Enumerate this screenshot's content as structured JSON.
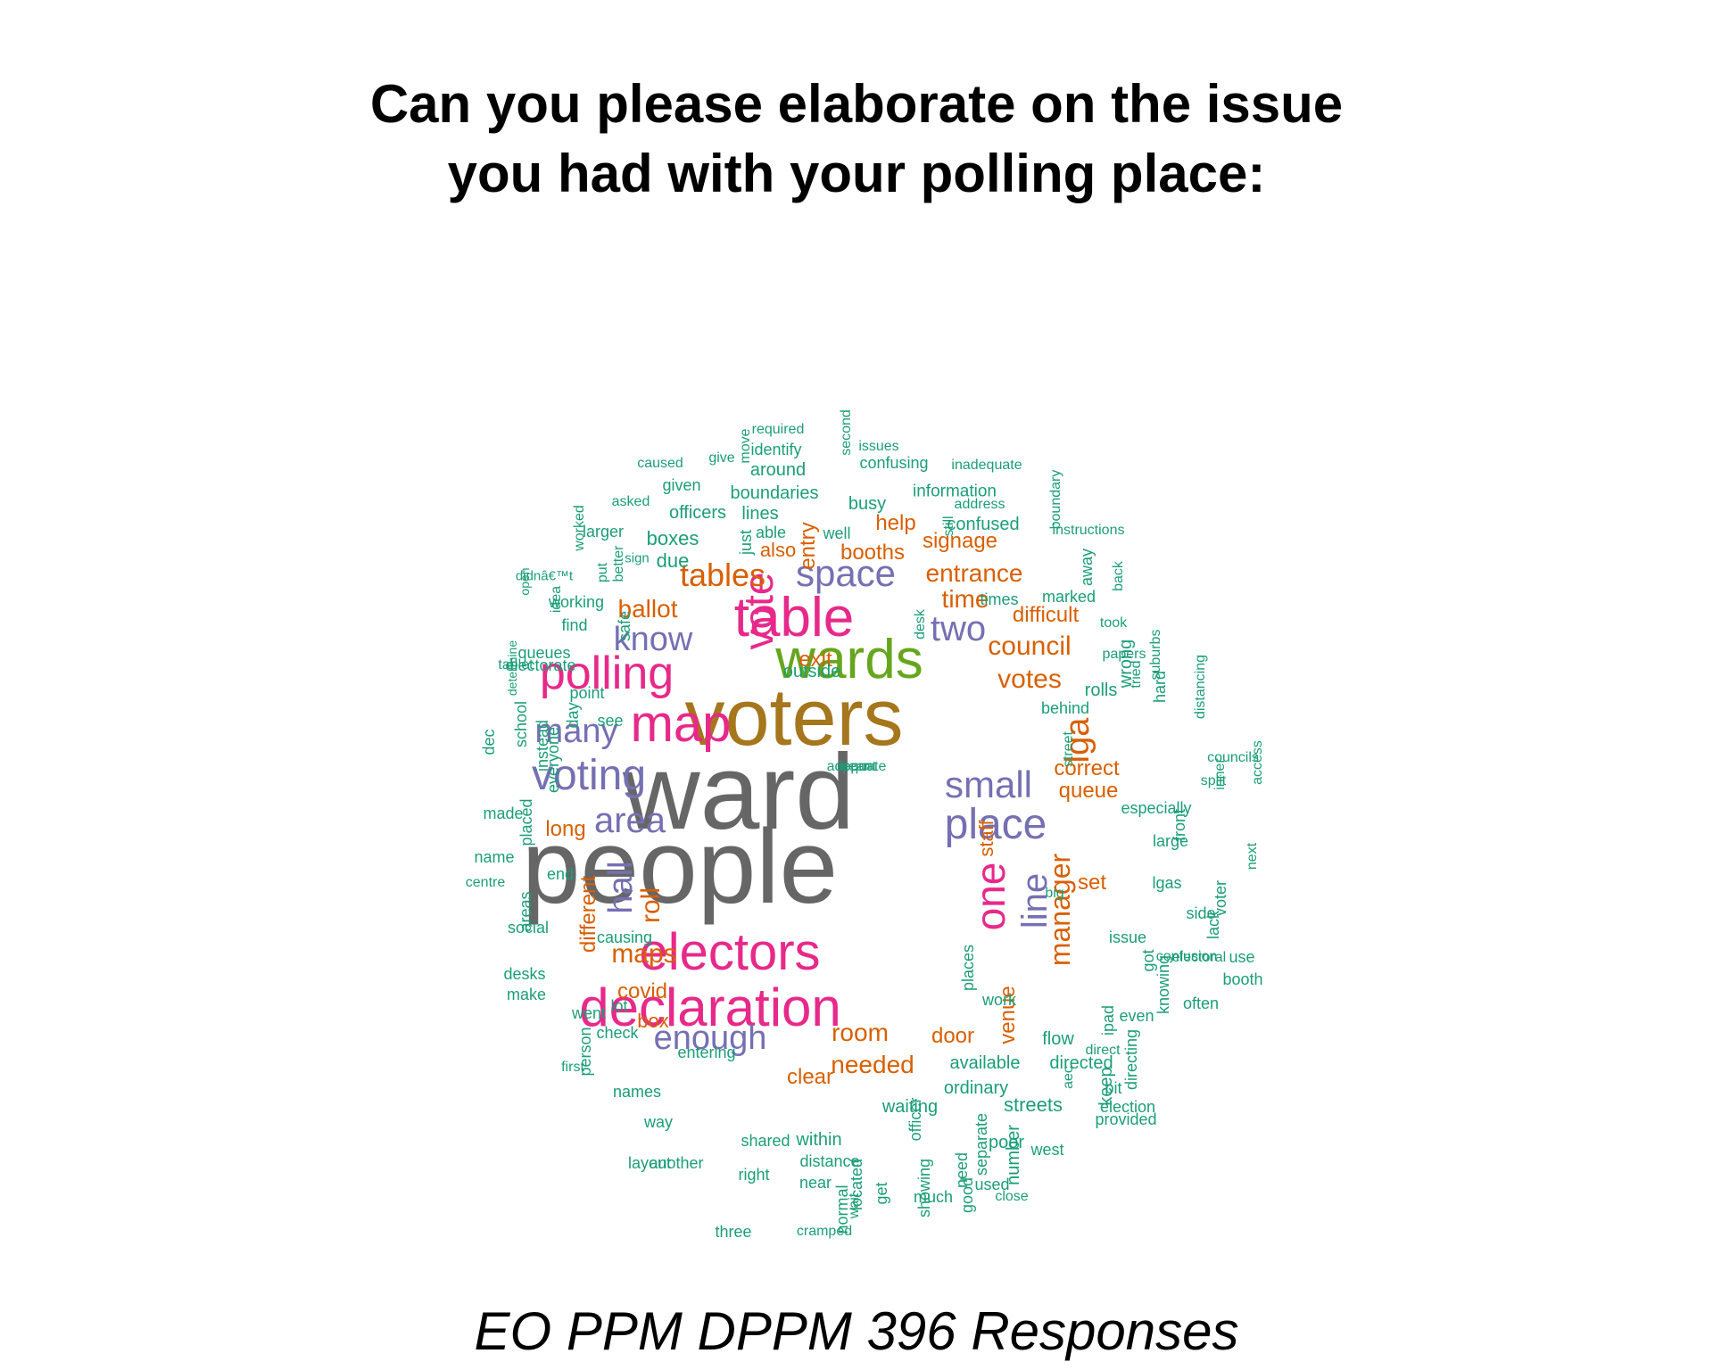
{
  "title": {
    "line1": "Can you please elaborate on the issue",
    "line2": "you had with your polling place:"
  },
  "footer": "EO PPM DPPM 396 Responses",
  "colors": {
    "gray": "#666666",
    "olive": "#a6761d",
    "pink": "#e7298a",
    "green": "#66a61e",
    "purple": "#7570b3",
    "orange": "#d95f02",
    "teal": "#1b9e77"
  },
  "words": [
    {
      "text": "ward",
      "color": "gray"
    },
    {
      "text": "people",
      "color": "gray"
    },
    {
      "text": "voters",
      "color": "olive"
    },
    {
      "text": "wards",
      "color": "green"
    },
    {
      "text": "table",
      "color": "pink"
    },
    {
      "text": "map",
      "color": "pink"
    },
    {
      "text": "polling",
      "color": "pink"
    },
    {
      "text": "electors",
      "color": "pink"
    },
    {
      "text": "declaration",
      "color": "pink"
    },
    {
      "text": "vote",
      "color": "pink"
    },
    {
      "text": "one",
      "color": "pink"
    },
    {
      "text": "voting",
      "color": "purple"
    },
    {
      "text": "place",
      "color": "purple"
    },
    {
      "text": "small",
      "color": "purple"
    },
    {
      "text": "space",
      "color": "purple"
    },
    {
      "text": "know",
      "color": "purple"
    },
    {
      "text": "many",
      "color": "purple"
    },
    {
      "text": "area",
      "color": "purple"
    },
    {
      "text": "two",
      "color": "purple"
    },
    {
      "text": "enough",
      "color": "purple"
    },
    {
      "text": "hall",
      "color": "purple"
    },
    {
      "text": "line",
      "color": "purple"
    },
    {
      "text": "tables",
      "color": "orange"
    },
    {
      "text": "council",
      "color": "orange"
    },
    {
      "text": "votes",
      "color": "orange"
    },
    {
      "text": "maps",
      "color": "orange"
    },
    {
      "text": "manager",
      "color": "orange"
    },
    {
      "text": "lga",
      "color": "orange"
    },
    {
      "text": "roll",
      "color": "orange"
    },
    {
      "text": "room",
      "color": "orange"
    },
    {
      "text": "needed",
      "color": "orange"
    },
    {
      "text": "time",
      "color": "orange"
    },
    {
      "text": "entrance",
      "color": "orange"
    },
    {
      "text": "ballot",
      "color": "orange"
    },
    {
      "text": "booths",
      "color": "orange"
    },
    {
      "text": "signage",
      "color": "orange"
    },
    {
      "text": "help",
      "color": "orange"
    },
    {
      "text": "difficult",
      "color": "orange"
    },
    {
      "text": "queue",
      "color": "orange"
    },
    {
      "text": "correct",
      "color": "orange"
    },
    {
      "text": "long",
      "color": "orange"
    },
    {
      "text": "set",
      "color": "orange"
    },
    {
      "text": "covid",
      "color": "orange"
    },
    {
      "text": "box",
      "color": "orange"
    },
    {
      "text": "clear",
      "color": "orange"
    },
    {
      "text": "door",
      "color": "orange"
    },
    {
      "text": "exit",
      "color": "orange"
    },
    {
      "text": "also",
      "color": "orange"
    },
    {
      "text": "entry",
      "color": "orange"
    },
    {
      "text": "staff",
      "color": "orange"
    },
    {
      "text": "different",
      "color": "orange"
    },
    {
      "text": "venue",
      "color": "orange"
    },
    {
      "text": "required",
      "color": "teal"
    },
    {
      "text": "second",
      "color": "teal"
    },
    {
      "text": "issues",
      "color": "teal"
    },
    {
      "text": "caused",
      "color": "teal"
    },
    {
      "text": "give",
      "color": "teal"
    },
    {
      "text": "move",
      "color": "teal"
    },
    {
      "text": "identify",
      "color": "teal"
    },
    {
      "text": "confusing",
      "color": "teal"
    },
    {
      "text": "inadequate",
      "color": "teal"
    },
    {
      "text": "around",
      "color": "teal"
    },
    {
      "text": "given",
      "color": "teal"
    },
    {
      "text": "boundaries",
      "color": "teal"
    },
    {
      "text": "information",
      "color": "teal"
    },
    {
      "text": "boundary",
      "color": "teal"
    },
    {
      "text": "asked",
      "color": "teal"
    },
    {
      "text": "busy",
      "color": "teal"
    },
    {
      "text": "address",
      "color": "teal"
    },
    {
      "text": "worked",
      "color": "teal"
    },
    {
      "text": "officers",
      "color": "teal"
    },
    {
      "text": "lines",
      "color": "teal"
    },
    {
      "text": "confused",
      "color": "teal"
    },
    {
      "text": "larger",
      "color": "teal"
    },
    {
      "text": "able",
      "color": "teal"
    },
    {
      "text": "well",
      "color": "teal"
    },
    {
      "text": "still",
      "color": "teal"
    },
    {
      "text": "instructions",
      "color": "teal"
    },
    {
      "text": "boxes",
      "color": "teal"
    },
    {
      "text": "just",
      "color": "teal"
    },
    {
      "text": "away",
      "color": "teal"
    },
    {
      "text": "sign",
      "color": "teal"
    },
    {
      "text": "better",
      "color": "teal"
    },
    {
      "text": "due",
      "color": "teal"
    },
    {
      "text": "didnâ€™t",
      "color": "teal"
    },
    {
      "text": "put",
      "color": "teal"
    },
    {
      "text": "back",
      "color": "teal"
    },
    {
      "text": "open",
      "color": "teal"
    },
    {
      "text": "idea",
      "color": "teal"
    },
    {
      "text": "times",
      "color": "teal"
    },
    {
      "text": "marked",
      "color": "teal"
    },
    {
      "text": "working",
      "color": "teal"
    },
    {
      "text": "find",
      "color": "teal"
    },
    {
      "text": "safe",
      "color": "teal"
    },
    {
      "text": "desk",
      "color": "teal"
    },
    {
      "text": "took",
      "color": "teal"
    },
    {
      "text": "papers",
      "color": "teal"
    },
    {
      "text": "suburbs",
      "color": "teal"
    },
    {
      "text": "tablet",
      "color": "teal"
    },
    {
      "text": "queues",
      "color": "teal"
    },
    {
      "text": "tried",
      "color": "teal"
    },
    {
      "text": "determine",
      "color": "teal"
    },
    {
      "text": "electorate",
      "color": "teal"
    },
    {
      "text": "outside",
      "color": "teal"
    },
    {
      "text": "rolls",
      "color": "teal"
    },
    {
      "text": "wrong",
      "color": "teal"
    },
    {
      "text": "hard",
      "color": "teal"
    },
    {
      "text": "distancing",
      "color": "teal"
    },
    {
      "text": "point",
      "color": "teal"
    },
    {
      "text": "behind",
      "color": "teal"
    },
    {
      "text": "day",
      "color": "teal"
    },
    {
      "text": "see",
      "color": "teal"
    },
    {
      "text": "school",
      "color": "teal"
    },
    {
      "text": "instead",
      "color": "teal"
    },
    {
      "text": "street",
      "color": "teal"
    },
    {
      "text": "councils",
      "color": "teal"
    },
    {
      "text": "access",
      "color": "teal"
    },
    {
      "text": "dec",
      "color": "teal"
    },
    {
      "text": "split",
      "color": "teal"
    },
    {
      "text": "everyone",
      "color": "teal"
    },
    {
      "text": "inner",
      "color": "teal"
    },
    {
      "text": "made",
      "color": "teal"
    },
    {
      "text": "especially",
      "color": "teal"
    },
    {
      "text": "placed",
      "color": "teal"
    },
    {
      "text": "front",
      "color": "teal"
    },
    {
      "text": "name",
      "color": "teal"
    },
    {
      "text": "large",
      "color": "teal"
    },
    {
      "text": "next",
      "color": "teal"
    },
    {
      "text": "end",
      "color": "teal"
    },
    {
      "text": "centre",
      "color": "teal"
    },
    {
      "text": "lgas",
      "color": "teal"
    },
    {
      "text": "voter",
      "color": "teal"
    },
    {
      "text": "big",
      "color": "teal"
    },
    {
      "text": "side",
      "color": "teal"
    },
    {
      "text": "areas",
      "color": "teal"
    },
    {
      "text": "social",
      "color": "teal"
    },
    {
      "text": "lack",
      "color": "teal"
    },
    {
      "text": "issue",
      "color": "teal"
    },
    {
      "text": "causing",
      "color": "teal"
    },
    {
      "text": "use",
      "color": "teal"
    },
    {
      "text": "confusion",
      "color": "teal"
    },
    {
      "text": "got",
      "color": "teal"
    },
    {
      "text": "electoral",
      "color": "teal"
    },
    {
      "text": "desks",
      "color": "teal"
    },
    {
      "text": "places",
      "color": "teal"
    },
    {
      "text": "booth",
      "color": "teal"
    },
    {
      "text": "make",
      "color": "teal"
    },
    {
      "text": "lot",
      "color": "teal"
    },
    {
      "text": "knowing",
      "color": "teal"
    },
    {
      "text": "often",
      "color": "teal"
    },
    {
      "text": "work",
      "color": "teal"
    },
    {
      "text": "went",
      "color": "teal"
    },
    {
      "text": "even",
      "color": "teal"
    },
    {
      "text": "ipad",
      "color": "teal"
    },
    {
      "text": "check",
      "color": "teal"
    },
    {
      "text": "flow",
      "color": "teal"
    },
    {
      "text": "direct",
      "color": "teal"
    },
    {
      "text": "person",
      "color": "teal"
    },
    {
      "text": "entering",
      "color": "teal"
    },
    {
      "text": "first",
      "color": "teal"
    },
    {
      "text": "directed",
      "color": "teal"
    },
    {
      "text": "available",
      "color": "teal"
    },
    {
      "text": "directing",
      "color": "teal"
    },
    {
      "text": "keep",
      "color": "teal"
    },
    {
      "text": "bit",
      "color": "teal"
    },
    {
      "text": "aec",
      "color": "teal"
    },
    {
      "text": "names",
      "color": "teal"
    },
    {
      "text": "ordinary",
      "color": "teal"
    },
    {
      "text": "election",
      "color": "teal"
    },
    {
      "text": "waiting",
      "color": "teal"
    },
    {
      "text": "way",
      "color": "teal"
    },
    {
      "text": "streets",
      "color": "teal"
    },
    {
      "text": "provided",
      "color": "teal"
    },
    {
      "text": "officer",
      "color": "teal"
    },
    {
      "text": "shared",
      "color": "teal"
    },
    {
      "text": "within",
      "color": "teal"
    },
    {
      "text": "poor",
      "color": "teal"
    },
    {
      "text": "separate",
      "color": "teal"
    },
    {
      "text": "another",
      "color": "teal"
    },
    {
      "text": "number",
      "color": "teal"
    },
    {
      "text": "layout",
      "color": "teal"
    },
    {
      "text": "need",
      "color": "teal"
    },
    {
      "text": "west",
      "color": "teal"
    },
    {
      "text": "distance",
      "color": "teal"
    },
    {
      "text": "right",
      "color": "teal"
    },
    {
      "text": "near",
      "color": "teal"
    },
    {
      "text": "located",
      "color": "teal"
    },
    {
      "text": "get",
      "color": "teal"
    },
    {
      "text": "showing",
      "color": "teal"
    },
    {
      "text": "used",
      "color": "teal"
    },
    {
      "text": "good",
      "color": "teal"
    },
    {
      "text": "wait",
      "color": "teal"
    },
    {
      "text": "much",
      "color": "teal"
    },
    {
      "text": "close",
      "color": "teal"
    },
    {
      "text": "normal",
      "color": "teal"
    },
    {
      "text": "three",
      "color": "teal"
    },
    {
      "text": "cramped",
      "color": "teal"
    },
    {
      "text": "meant",
      "color": "teal"
    },
    {
      "text": "adequate",
      "color": "teal"
    },
    {
      "text": "ppm",
      "color": "teal"
    }
  ]
}
